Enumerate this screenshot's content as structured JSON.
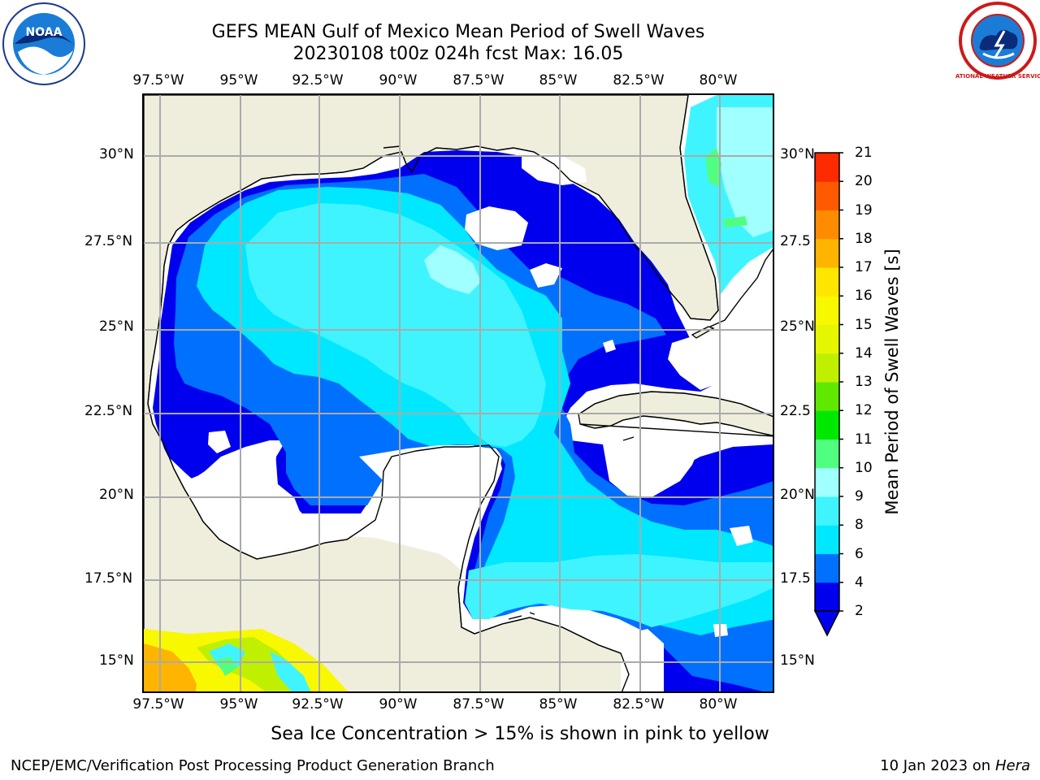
{
  "title": {
    "line1": "GEFS MEAN Gulf of Mexico Mean Period of Swell Waves",
    "line2": "20230108 t00z 024h fcst   Max: 16.05"
  },
  "map": {
    "lon_labels": [
      "97.5°W",
      "95°W",
      "92.5°W",
      "90°W",
      "87.5°W",
      "85°W",
      "82.5°W",
      "80°W"
    ],
    "lat_labels_left": [
      "30°N",
      "27.5°N",
      "25°N",
      "22.5°N",
      "20°N",
      "17.5°N",
      "15°N"
    ],
    "lat_labels_right": [
      "30°N",
      "27.5",
      "25°N",
      "22.5",
      "20°N",
      "17.5",
      "15°N"
    ],
    "land_color": "#efeedd",
    "sea_no_data_color": "#ffffff",
    "grid_color": "#aaaaaa"
  },
  "colorbar": {
    "title": "Mean Period of Swell Waves [s]",
    "ticks": [
      "2",
      "4",
      "6",
      "8",
      "9",
      "10",
      "11",
      "12",
      "13",
      "14",
      "15",
      "16",
      "17",
      "18",
      "19",
      "20",
      "21"
    ],
    "colors": [
      "#0000ee",
      "#0070ff",
      "#00e8ff",
      "#40f4ff",
      "#a0ffff",
      "#50ff80",
      "#00e800",
      "#60e800",
      "#c0f000",
      "#e6f600",
      "#f8f800",
      "#ffe600",
      "#ffb400",
      "#ff8c00",
      "#ff5a00",
      "#ff2a00",
      "#ff0000"
    ],
    "extend": "min"
  },
  "chart_data": {
    "type": "heatmap",
    "variable": "Mean Period of Swell Waves",
    "unit": "s",
    "max": 16.05,
    "color_levels": [
      2,
      4,
      6,
      8,
      9,
      10,
      11,
      12,
      13,
      14,
      15,
      16,
      17,
      18,
      19,
      20,
      21
    ],
    "lon_range": [
      -98,
      -78.2
    ],
    "lat_range": [
      14,
      31.8
    ]
  },
  "subcaption": "Sea Ice Concentration > 15% is shown in pink to yellow",
  "footer": {
    "left": "NCEP/EMC/Verification Post Processing Product Generation Branch",
    "right_date": "10 Jan 2023 on ",
    "right_host": "Hera"
  },
  "logos": {
    "noaa_text": "NOAA",
    "nws_text": "NATIONAL WEATHER SERVICE"
  }
}
